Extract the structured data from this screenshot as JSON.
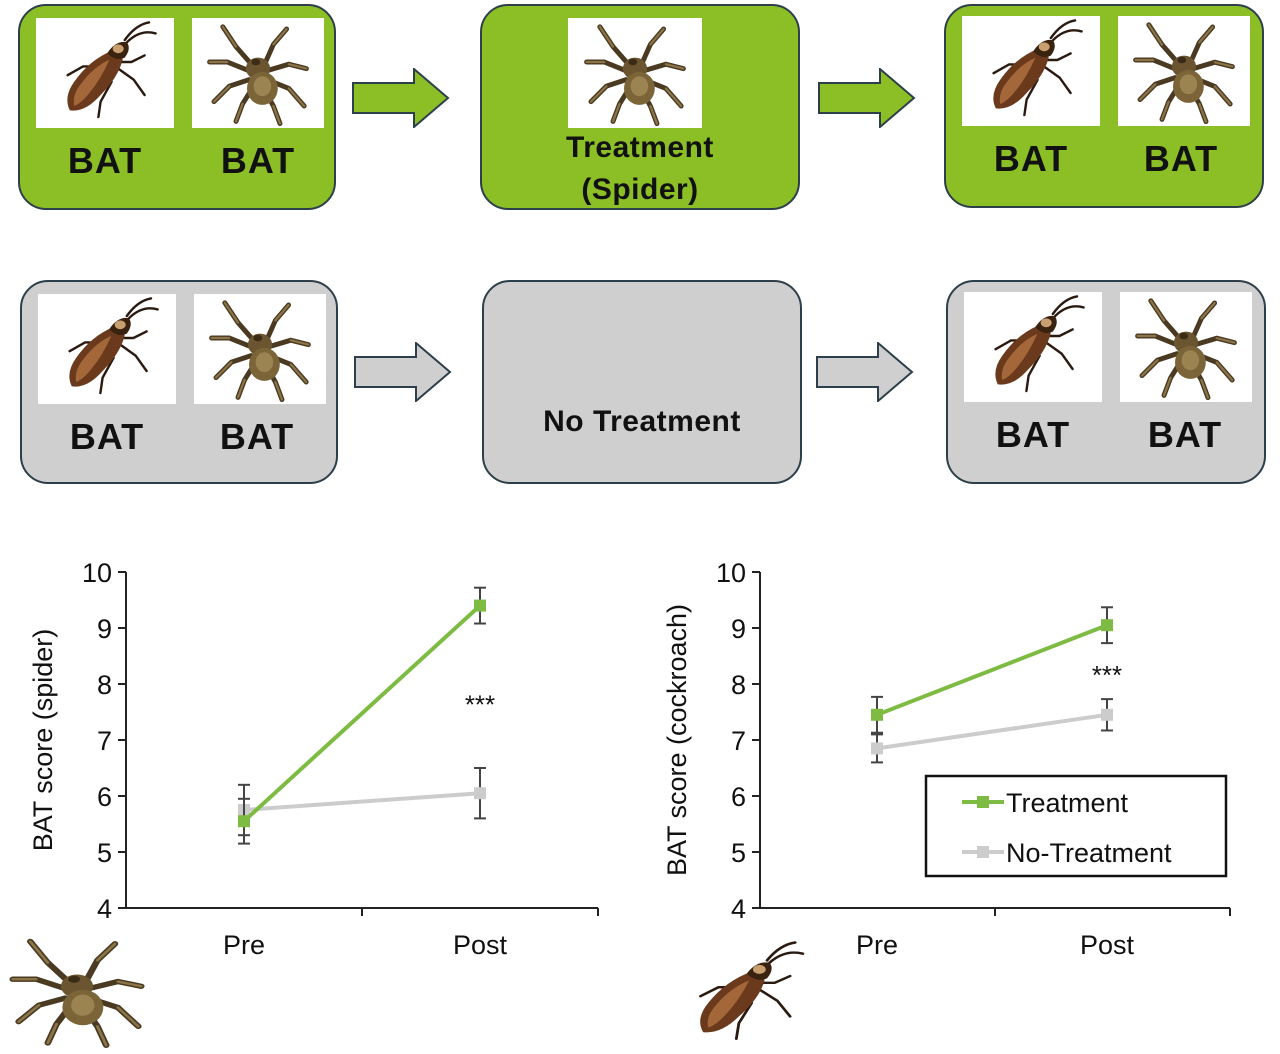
{
  "flow": {
    "treatment_row": {
      "left_labels": [
        "BAT",
        "BAT"
      ],
      "middle_lines": [
        "Treatment",
        "(Spider)"
      ],
      "right_labels": [
        "BAT",
        "BAT"
      ]
    },
    "control_row": {
      "left_labels": [
        "BAT",
        "BAT"
      ],
      "middle_label": "No Treatment",
      "right_labels": [
        "BAT",
        "BAT"
      ]
    }
  },
  "colors": {
    "treatment": "#7dbb42",
    "no_treatment": "#cccccc",
    "box_green": "#8cbf26",
    "box_grey": "#cfcfcf"
  },
  "chart_data": [
    {
      "type": "line",
      "categories": [
        "Pre",
        "Post"
      ],
      "ylabel": "BAT score (spider)",
      "ylim": [
        4,
        10
      ],
      "yticks": [
        4,
        5,
        6,
        7,
        8,
        9,
        10
      ],
      "series": [
        {
          "name": "Treatment",
          "values": [
            5.55,
            9.4
          ],
          "errors": [
            0.4,
            0.32
          ]
        },
        {
          "name": "No-Treatment",
          "values": [
            5.75,
            6.05
          ],
          "errors": [
            0.45,
            0.45
          ]
        }
      ],
      "annotation": "***",
      "legend": false
    },
    {
      "type": "line",
      "categories": [
        "Pre",
        "Post"
      ],
      "ylabel": "BAT score (cockroach)",
      "ylim": [
        4,
        10
      ],
      "yticks": [
        4,
        5,
        6,
        7,
        8,
        9,
        10
      ],
      "series": [
        {
          "name": "Treatment",
          "values": [
            7.45,
            9.05
          ],
          "errors": [
            0.32,
            0.32
          ]
        },
        {
          "name": "No-Treatment",
          "values": [
            6.85,
            7.45
          ],
          "errors": [
            0.25,
            0.28
          ]
        }
      ],
      "annotation": "***",
      "legend": true,
      "legend_placement": "bottom-right"
    }
  ]
}
